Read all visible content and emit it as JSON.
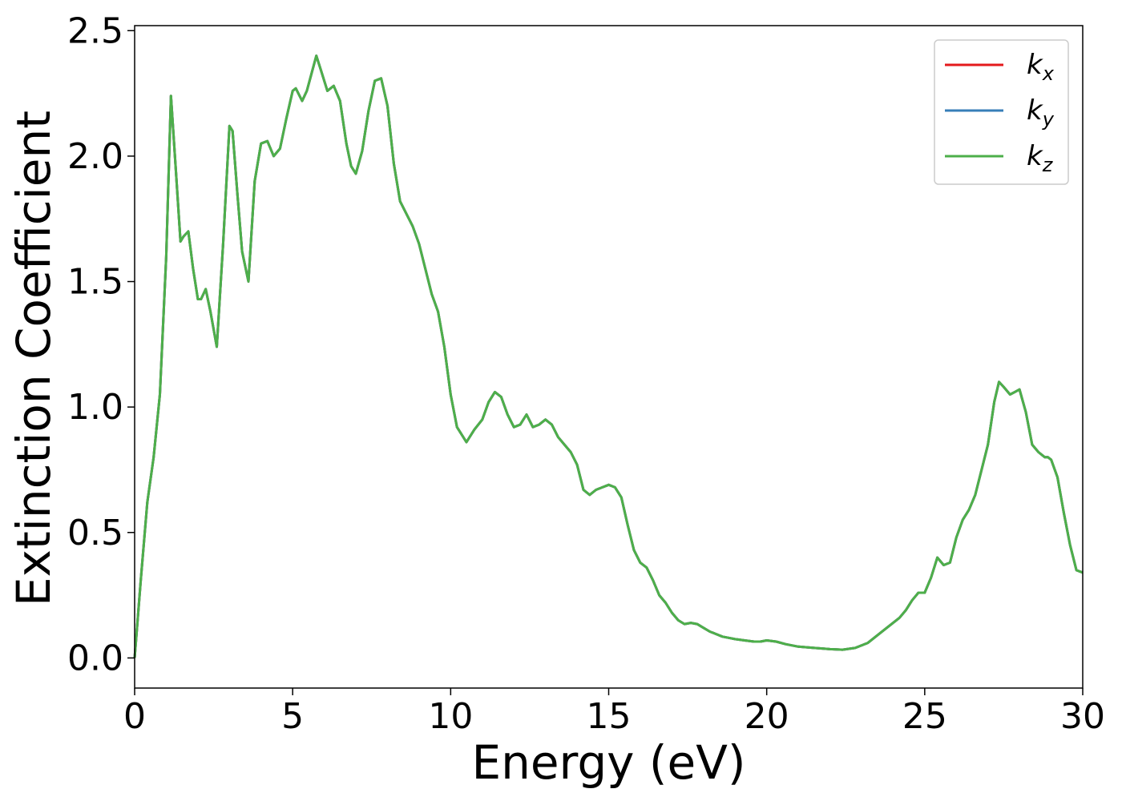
{
  "chart_data": {
    "type": "line",
    "xlabel": "Energy (eV)",
    "ylabel": "Extinction Coefficient",
    "xlim": [
      0,
      30
    ],
    "ylim": [
      -0.12,
      2.52
    ],
    "xticks": [
      "0",
      "5",
      "10",
      "15",
      "20",
      "25",
      "30"
    ],
    "yticks": [
      "0.0",
      "0.5",
      "1.0",
      "1.5",
      "2.0",
      "2.5"
    ],
    "grid": false,
    "legend_position": "top-right",
    "x": [
      0,
      0.2,
      0.4,
      0.6,
      0.8,
      1.0,
      1.15,
      1.3,
      1.45,
      1.55,
      1.7,
      1.85,
      2.0,
      2.1,
      2.25,
      2.4,
      2.6,
      2.8,
      3.0,
      3.1,
      3.25,
      3.4,
      3.6,
      3.8,
      4.0,
      4.2,
      4.4,
      4.6,
      4.8,
      5.0,
      5.1,
      5.3,
      5.45,
      5.6,
      5.75,
      5.9,
      6.1,
      6.3,
      6.5,
      6.7,
      6.85,
      7.0,
      7.2,
      7.4,
      7.6,
      7.8,
      8.0,
      8.2,
      8.4,
      8.6,
      8.8,
      9.0,
      9.2,
      9.4,
      9.6,
      9.8,
      10.0,
      10.2,
      10.5,
      10.75,
      11.0,
      11.2,
      11.4,
      11.6,
      11.8,
      12.0,
      12.2,
      12.4,
      12.6,
      12.8,
      13.0,
      13.2,
      13.4,
      13.6,
      13.8,
      14.0,
      14.2,
      14.4,
      14.6,
      14.8,
      15.0,
      15.2,
      15.4,
      15.6,
      15.8,
      16.0,
      16.2,
      16.4,
      16.6,
      16.8,
      17.0,
      17.2,
      17.4,
      17.6,
      17.8,
      18.0,
      18.2,
      18.4,
      18.6,
      18.8,
      19.0,
      19.3,
      19.6,
      19.8,
      20.0,
      20.3,
      20.6,
      21.0,
      21.5,
      22.0,
      22.4,
      22.8,
      23.2,
      23.6,
      24.0,
      24.2,
      24.4,
      24.6,
      24.8,
      25.0,
      25.2,
      25.4,
      25.6,
      25.8,
      26.0,
      26.2,
      26.4,
      26.6,
      26.8,
      27.0,
      27.2,
      27.35,
      27.5,
      27.7,
      27.85,
      28.0,
      28.2,
      28.4,
      28.6,
      28.8,
      28.9,
      29.0,
      29.2,
      29.4,
      29.6,
      29.8,
      30.0
    ],
    "series": [
      {
        "name": "x",
        "color": "#e41a1c",
        "values": [
          0,
          0.32,
          0.62,
          0.8,
          1.05,
          1.6,
          2.24,
          1.95,
          1.66,
          1.68,
          1.7,
          1.55,
          1.43,
          1.43,
          1.47,
          1.38,
          1.24,
          1.65,
          2.12,
          2.1,
          1.85,
          1.62,
          1.5,
          1.9,
          2.05,
          2.06,
          2.0,
          2.03,
          2.15,
          2.26,
          2.27,
          2.22,
          2.26,
          2.33,
          2.4,
          2.34,
          2.26,
          2.28,
          2.22,
          2.05,
          1.96,
          1.93,
          2.02,
          2.18,
          2.3,
          2.31,
          2.2,
          1.97,
          1.82,
          1.77,
          1.72,
          1.65,
          1.55,
          1.45,
          1.38,
          1.24,
          1.05,
          0.92,
          0.86,
          0.91,
          0.95,
          1.02,
          1.06,
          1.04,
          0.97,
          0.92,
          0.93,
          0.97,
          0.92,
          0.93,
          0.95,
          0.93,
          0.88,
          0.85,
          0.82,
          0.77,
          0.67,
          0.65,
          0.67,
          0.68,
          0.69,
          0.68,
          0.64,
          0.53,
          0.43,
          0.38,
          0.36,
          0.31,
          0.25,
          0.22,
          0.18,
          0.15,
          0.135,
          0.14,
          0.135,
          0.12,
          0.105,
          0.095,
          0.085,
          0.08,
          0.075,
          0.07,
          0.065,
          0.065,
          0.07,
          0.065,
          0.055,
          0.045,
          0.04,
          0.035,
          0.033,
          0.04,
          0.06,
          0.1,
          0.14,
          0.16,
          0.19,
          0.23,
          0.26,
          0.26,
          0.32,
          0.4,
          0.37,
          0.38,
          0.48,
          0.55,
          0.59,
          0.65,
          0.75,
          0.85,
          1.02,
          1.1,
          1.08,
          1.05,
          1.06,
          1.07,
          0.98,
          0.85,
          0.82,
          0.8,
          0.8,
          0.79,
          0.72,
          0.58,
          0.45,
          0.35,
          0.34
        ]
      },
      {
        "name": "y",
        "color": "#377eb8",
        "values": [
          0,
          0.32,
          0.62,
          0.8,
          1.05,
          1.6,
          2.24,
          1.95,
          1.66,
          1.68,
          1.7,
          1.55,
          1.43,
          1.43,
          1.47,
          1.38,
          1.24,
          1.65,
          2.12,
          2.1,
          1.85,
          1.62,
          1.5,
          1.9,
          2.05,
          2.06,
          2.0,
          2.03,
          2.15,
          2.26,
          2.27,
          2.22,
          2.26,
          2.33,
          2.4,
          2.34,
          2.26,
          2.28,
          2.22,
          2.05,
          1.96,
          1.93,
          2.02,
          2.18,
          2.3,
          2.31,
          2.2,
          1.97,
          1.82,
          1.77,
          1.72,
          1.65,
          1.55,
          1.45,
          1.38,
          1.24,
          1.05,
          0.92,
          0.86,
          0.91,
          0.95,
          1.02,
          1.06,
          1.04,
          0.97,
          0.92,
          0.93,
          0.97,
          0.92,
          0.93,
          0.95,
          0.93,
          0.88,
          0.85,
          0.82,
          0.77,
          0.67,
          0.65,
          0.67,
          0.68,
          0.69,
          0.68,
          0.64,
          0.53,
          0.43,
          0.38,
          0.36,
          0.31,
          0.25,
          0.22,
          0.18,
          0.15,
          0.135,
          0.14,
          0.135,
          0.12,
          0.105,
          0.095,
          0.085,
          0.08,
          0.075,
          0.07,
          0.065,
          0.065,
          0.07,
          0.065,
          0.055,
          0.045,
          0.04,
          0.035,
          0.033,
          0.04,
          0.06,
          0.1,
          0.14,
          0.16,
          0.19,
          0.23,
          0.26,
          0.26,
          0.32,
          0.4,
          0.37,
          0.38,
          0.48,
          0.55,
          0.59,
          0.65,
          0.75,
          0.85,
          1.02,
          1.1,
          1.08,
          1.05,
          1.06,
          1.07,
          0.98,
          0.85,
          0.82,
          0.8,
          0.8,
          0.79,
          0.72,
          0.58,
          0.45,
          0.35,
          0.34
        ]
      },
      {
        "name": "z",
        "color": "#4daf4a",
        "values": [
          0,
          0.32,
          0.62,
          0.8,
          1.05,
          1.6,
          2.24,
          1.95,
          1.66,
          1.68,
          1.7,
          1.55,
          1.43,
          1.43,
          1.47,
          1.38,
          1.24,
          1.65,
          2.12,
          2.1,
          1.85,
          1.62,
          1.5,
          1.9,
          2.05,
          2.06,
          2.0,
          2.03,
          2.15,
          2.26,
          2.27,
          2.22,
          2.26,
          2.33,
          2.4,
          2.34,
          2.26,
          2.28,
          2.22,
          2.05,
          1.96,
          1.93,
          2.02,
          2.18,
          2.3,
          2.31,
          2.2,
          1.97,
          1.82,
          1.77,
          1.72,
          1.65,
          1.55,
          1.45,
          1.38,
          1.24,
          1.05,
          0.92,
          0.86,
          0.91,
          0.95,
          1.02,
          1.06,
          1.04,
          0.97,
          0.92,
          0.93,
          0.97,
          0.92,
          0.93,
          0.95,
          0.93,
          0.88,
          0.85,
          0.82,
          0.77,
          0.67,
          0.65,
          0.67,
          0.68,
          0.69,
          0.68,
          0.64,
          0.53,
          0.43,
          0.38,
          0.36,
          0.31,
          0.25,
          0.22,
          0.18,
          0.15,
          0.135,
          0.14,
          0.135,
          0.12,
          0.105,
          0.095,
          0.085,
          0.08,
          0.075,
          0.07,
          0.065,
          0.065,
          0.07,
          0.065,
          0.055,
          0.045,
          0.04,
          0.035,
          0.033,
          0.04,
          0.06,
          0.1,
          0.14,
          0.16,
          0.19,
          0.23,
          0.26,
          0.26,
          0.32,
          0.4,
          0.37,
          0.38,
          0.48,
          0.55,
          0.59,
          0.65,
          0.75,
          0.85,
          1.02,
          1.1,
          1.08,
          1.05,
          1.06,
          1.07,
          0.98,
          0.85,
          0.82,
          0.8,
          0.8,
          0.79,
          0.72,
          0.58,
          0.45,
          0.35,
          0.34
        ]
      }
    ],
    "legend_symbol": "k"
  }
}
